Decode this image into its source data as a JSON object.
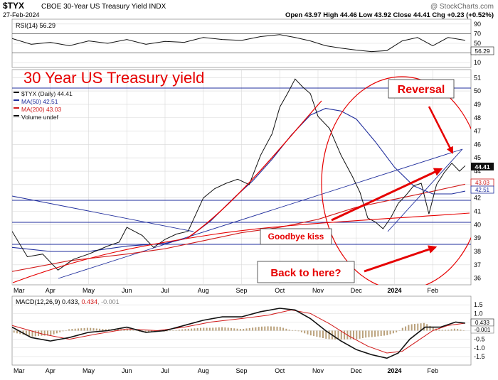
{
  "header": {
    "symbol": "$TYX",
    "name": "CBOE 30-Year US Treasury Yield INDX",
    "copyright": "@ StockCharts.com",
    "date": "27-Feb-2024",
    "quote": "Open 43.97  High 44.46  Low 43.92  Close 44.41  Chg +0.23 (+0.52%)"
  },
  "rsi": {
    "label": "RSI(14) 56.29",
    "value_badge": "56.29",
    "ticks": [
      "90",
      "70",
      "50",
      "30",
      "10"
    ]
  },
  "annotations": {
    "title": "30 Year US Treasury yield",
    "reversal": "Reversal",
    "goodbye": "Goodbye kiss",
    "back": "Back to here?"
  },
  "legend": [
    {
      "text": "$TYX (Daily) 44.41",
      "color": "#000000"
    },
    {
      "text": "MA(50) 42.51",
      "color": "#1f2d9c"
    },
    {
      "text": "MA(200) 43.03",
      "color": "#d11a1a"
    },
    {
      "text": "Volume undef",
      "color": "#000000"
    }
  ],
  "price_axis": {
    "ticks": [
      "51",
      "50",
      "49",
      "48",
      "47",
      "46",
      "45",
      "44",
      "43",
      "42",
      "41",
      "40",
      "39",
      "38",
      "37",
      "36"
    ],
    "badges": {
      "close": "44.41",
      "ma200": "43.03",
      "ma50": "42.51"
    }
  },
  "months": [
    "Mar",
    "Apr",
    "May",
    "Jun",
    "Jul",
    "Aug",
    "Sep",
    "Oct",
    "Nov",
    "Dec",
    "2024",
    "Feb"
  ],
  "macd": {
    "label": "MACD(12,26,9) 0.433, 0.434, -0.001",
    "label_parts": [
      "MACD(12,26,9) 0.433, ",
      "0.434",
      ", -0.001"
    ],
    "ticks": [
      "1.5",
      "1.0",
      "0.5",
      "0.0",
      "-0.5",
      "-1.0",
      "-1.5"
    ],
    "badges": {
      "macd": "0.433",
      "hist": "-0.001"
    }
  },
  "colors": {
    "accent": "#e60000",
    "ma50": "#1f2d9c",
    "ma200": "#d11a1a",
    "grid": "#d8d8d8"
  },
  "chart_data": {
    "type": "line",
    "title": "",
    "price_series": [
      {
        "m": 0,
        "v": 39.5
      },
      {
        "m": 0.4,
        "v": 37.6
      },
      {
        "m": 0.8,
        "v": 37.8
      },
      {
        "m": 1.2,
        "v": 36.6
      },
      {
        "m": 1.6,
        "v": 37.4
      },
      {
        "m": 2.0,
        "v": 37.8
      },
      {
        "m": 2.5,
        "v": 38.4
      },
      {
        "m": 2.8,
        "v": 38.7
      },
      {
        "m": 3.0,
        "v": 39.8
      },
      {
        "m": 3.4,
        "v": 39.2
      },
      {
        "m": 3.7,
        "v": 38.3
      },
      {
        "m": 4.0,
        "v": 38.9
      },
      {
        "m": 4.3,
        "v": 39.3
      },
      {
        "m": 4.6,
        "v": 39.5
      },
      {
        "m": 5.0,
        "v": 42.0
      },
      {
        "m": 5.3,
        "v": 42.7
      },
      {
        "m": 5.6,
        "v": 43.1
      },
      {
        "m": 5.9,
        "v": 43.4
      },
      {
        "m": 6.2,
        "v": 43.0
      },
      {
        "m": 6.5,
        "v": 45.2
      },
      {
        "m": 6.8,
        "v": 46.8
      },
      {
        "m": 7.0,
        "v": 48.8
      },
      {
        "m": 7.2,
        "v": 49.8
      },
      {
        "m": 7.4,
        "v": 50.9
      },
      {
        "m": 7.6,
        "v": 50.3
      },
      {
        "m": 7.8,
        "v": 49.8
      },
      {
        "m": 8.0,
        "v": 48.1
      },
      {
        "m": 8.3,
        "v": 47.2
      },
      {
        "m": 8.6,
        "v": 45.2
      },
      {
        "m": 8.9,
        "v": 43.6
      },
      {
        "m": 9.1,
        "v": 42.4
      },
      {
        "m": 9.3,
        "v": 40.5
      },
      {
        "m": 9.5,
        "v": 40.2
      },
      {
        "m": 9.7,
        "v": 39.7
      },
      {
        "m": 9.9,
        "v": 40.5
      },
      {
        "m": 10.1,
        "v": 41.6
      },
      {
        "m": 10.3,
        "v": 42.2
      },
      {
        "m": 10.5,
        "v": 42.9
      },
      {
        "m": 10.7,
        "v": 43.1
      },
      {
        "m": 10.9,
        "v": 40.8
      },
      {
        "m": 11.1,
        "v": 43.0
      },
      {
        "m": 11.3,
        "v": 43.9
      },
      {
        "m": 11.5,
        "v": 44.6
      },
      {
        "m": 11.7,
        "v": 44.0
      },
      {
        "m": 11.85,
        "v": 44.41
      }
    ],
    "ma50_series": [
      {
        "m": 0,
        "v": 38.3
      },
      {
        "m": 1.0,
        "v": 38.0
      },
      {
        "m": 2.0,
        "v": 38.0
      },
      {
        "m": 3.0,
        "v": 38.4
      },
      {
        "m": 4.0,
        "v": 38.6
      },
      {
        "m": 4.6,
        "v": 39.0
      },
      {
        "m": 5.2,
        "v": 40.3
      },
      {
        "m": 5.8,
        "v": 42.0
      },
      {
        "m": 6.3,
        "v": 43.3
      },
      {
        "m": 6.8,
        "v": 44.9
      },
      {
        "m": 7.3,
        "v": 46.7
      },
      {
        "m": 7.8,
        "v": 48.2
      },
      {
        "m": 8.2,
        "v": 48.7
      },
      {
        "m": 8.6,
        "v": 48.5
      },
      {
        "m": 9.0,
        "v": 47.9
      },
      {
        "m": 9.5,
        "v": 46.2
      },
      {
        "m": 10.0,
        "v": 44.3
      },
      {
        "m": 10.5,
        "v": 42.9
      },
      {
        "m": 11.0,
        "v": 42.3
      },
      {
        "m": 11.5,
        "v": 42.3
      },
      {
        "m": 11.85,
        "v": 42.51
      }
    ],
    "ma200_series": [
      {
        "m": 0,
        "v": 36.5
      },
      {
        "m": 1.5,
        "v": 37.3
      },
      {
        "m": 3.0,
        "v": 37.8
      },
      {
        "m": 4.0,
        "v": 38.2
      },
      {
        "m": 5.0,
        "v": 38.8
      },
      {
        "m": 6.0,
        "v": 39.4
      },
      {
        "m": 7.0,
        "v": 39.8
      },
      {
        "m": 8.0,
        "v": 40.4
      },
      {
        "m": 9.0,
        "v": 41.3
      },
      {
        "m": 10.0,
        "v": 41.9
      },
      {
        "m": 11.0,
        "v": 42.5
      },
      {
        "m": 11.85,
        "v": 43.03
      }
    ],
    "ylim": [
      35.5,
      51.6
    ],
    "rsi_series": [
      {
        "m": 0,
        "v": 60
      },
      {
        "m": 0.5,
        "v": 48
      },
      {
        "m": 1,
        "v": 52
      },
      {
        "m": 1.5,
        "v": 45
      },
      {
        "m": 2,
        "v": 55
      },
      {
        "m": 2.5,
        "v": 50
      },
      {
        "m": 3,
        "v": 58
      },
      {
        "m": 3.5,
        "v": 48
      },
      {
        "m": 4,
        "v": 54
      },
      {
        "m": 4.5,
        "v": 52
      },
      {
        "m": 5,
        "v": 62
      },
      {
        "m": 5.5,
        "v": 58
      },
      {
        "m": 6,
        "v": 56
      },
      {
        "m": 6.5,
        "v": 64
      },
      {
        "m": 7,
        "v": 68
      },
      {
        "m": 7.4,
        "v": 62
      },
      {
        "m": 7.8,
        "v": 55
      },
      {
        "m": 8.2,
        "v": 45
      },
      {
        "m": 8.6,
        "v": 40
      },
      {
        "m": 9,
        "v": 36
      },
      {
        "m": 9.4,
        "v": 33
      },
      {
        "m": 9.8,
        "v": 35
      },
      {
        "m": 10.2,
        "v": 55
      },
      {
        "m": 10.6,
        "v": 62
      },
      {
        "m": 11,
        "v": 45
      },
      {
        "m": 11.4,
        "v": 62
      },
      {
        "m": 11.85,
        "v": 56.29
      }
    ],
    "macd_series": [
      {
        "m": 0,
        "v": 0.2
      },
      {
        "m": 0.5,
        "v": -0.4
      },
      {
        "m": 1,
        "v": -0.6
      },
      {
        "m": 1.5,
        "v": -0.4
      },
      {
        "m": 2,
        "v": -0.1
      },
      {
        "m": 2.5,
        "v": 0.0
      },
      {
        "m": 3,
        "v": 0.2
      },
      {
        "m": 3.5,
        "v": -0.1
      },
      {
        "m": 4,
        "v": 0.0
      },
      {
        "m": 4.5,
        "v": 0.3
      },
      {
        "m": 5,
        "v": 0.6
      },
      {
        "m": 5.5,
        "v": 0.8
      },
      {
        "m": 6,
        "v": 0.8
      },
      {
        "m": 6.5,
        "v": 1.1
      },
      {
        "m": 7,
        "v": 1.3
      },
      {
        "m": 7.4,
        "v": 1.2
      },
      {
        "m": 7.8,
        "v": 0.7
      },
      {
        "m": 8.2,
        "v": 0.0
      },
      {
        "m": 8.6,
        "v": -0.6
      },
      {
        "m": 9,
        "v": -1.1
      },
      {
        "m": 9.4,
        "v": -1.4
      },
      {
        "m": 9.8,
        "v": -1.6
      },
      {
        "m": 10.1,
        "v": -1.3
      },
      {
        "m": 10.4,
        "v": -0.5
      },
      {
        "m": 10.8,
        "v": 0.2
      },
      {
        "m": 11.2,
        "v": 0.2
      },
      {
        "m": 11.6,
        "v": 0.5
      },
      {
        "m": 11.85,
        "v": 0.433
      }
    ],
    "signal_series": [
      {
        "m": 0,
        "v": 0.3
      },
      {
        "m": 0.8,
        "v": -0.2
      },
      {
        "m": 1.5,
        "v": -0.5
      },
      {
        "m": 2.2,
        "v": -0.2
      },
      {
        "m": 3,
        "v": 0.1
      },
      {
        "m": 3.8,
        "v": 0.0
      },
      {
        "m": 4.5,
        "v": 0.2
      },
      {
        "m": 5.2,
        "v": 0.5
      },
      {
        "m": 6,
        "v": 0.7
      },
      {
        "m": 6.7,
        "v": 0.9
      },
      {
        "m": 7.3,
        "v": 1.2
      },
      {
        "m": 7.8,
        "v": 1.0
      },
      {
        "m": 8.3,
        "v": 0.4
      },
      {
        "m": 8.8,
        "v": -0.3
      },
      {
        "m": 9.3,
        "v": -0.9
      },
      {
        "m": 9.8,
        "v": -1.3
      },
      {
        "m": 10.2,
        "v": -1.2
      },
      {
        "m": 10.6,
        "v": -0.6
      },
      {
        "m": 11,
        "v": 0.0
      },
      {
        "m": 11.4,
        "v": 0.3
      },
      {
        "m": 11.85,
        "v": 0.434
      }
    ]
  }
}
